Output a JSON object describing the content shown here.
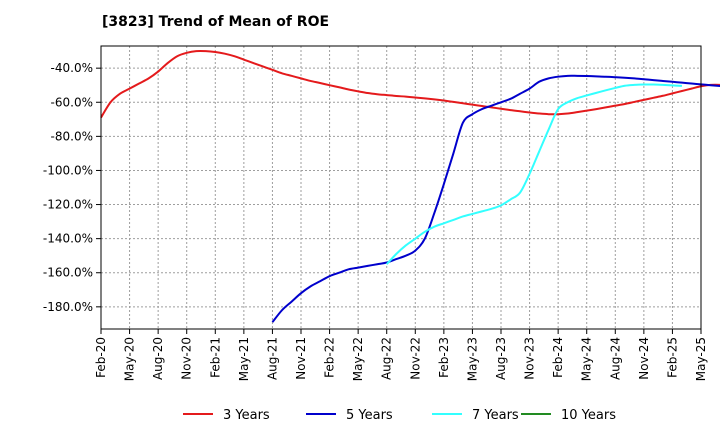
{
  "chart_data": {
    "type": "line",
    "title": "[3823]  Trend of Mean of ROE",
    "xlabel": "",
    "ylabel": "",
    "ylim": [
      -193,
      -27
    ],
    "y_ticks": [
      {
        "value": -40,
        "label": "-40.0%"
      },
      {
        "value": -60,
        "label": "-60.0%"
      },
      {
        "value": -80,
        "label": "-80.0%"
      },
      {
        "value": -100,
        "label": "-100.0%"
      },
      {
        "value": -120,
        "label": "-120.0%"
      },
      {
        "value": -140,
        "label": "-140.0%"
      },
      {
        "value": -160,
        "label": "-160.0%"
      },
      {
        "value": -180,
        "label": "-180.0%"
      }
    ],
    "x_ticks": [
      "Feb-20",
      "May-20",
      "Aug-20",
      "Nov-20",
      "Feb-21",
      "May-21",
      "Aug-21",
      "Nov-21",
      "Feb-22",
      "May-22",
      "Aug-22",
      "Nov-22",
      "Feb-23",
      "May-23",
      "Aug-23",
      "Nov-23",
      "Feb-24",
      "May-24",
      "Aug-24",
      "Nov-24",
      "Feb-25",
      "May-25"
    ],
    "grid": true,
    "legend_position": "bottom",
    "series": [
      {
        "name": "3 Years",
        "color": "#e41a1c",
        "start_index": 0,
        "values": [
          -69,
          -60,
          -55,
          -52,
          -49,
          -46,
          -42,
          -37,
          -33,
          -31,
          -30,
          -30,
          -30.5,
          -31.5,
          -33,
          -35,
          -37,
          -39,
          -41,
          -43,
          -44.5,
          -46,
          -47.5,
          -48.7,
          -50,
          -51.2,
          -52.5,
          -53.6,
          -54.6,
          -55.3,
          -55.8,
          -56.3,
          -56.7,
          -57.2,
          -57.7,
          -58.3,
          -59,
          -59.8,
          -60.6,
          -61.4,
          -62.2,
          -63,
          -63.8,
          -64.6,
          -65.3,
          -66,
          -66.6,
          -67,
          -67,
          -66.6,
          -65.8,
          -64.9,
          -64,
          -63,
          -62,
          -61,
          -59.8,
          -58.6,
          -57.4,
          -56.2,
          -54.8,
          -53.4,
          -52,
          -50.6,
          -49.8,
          -49.8,
          -50.6,
          -52,
          -53.4,
          -55,
          -56.5,
          -57.6,
          -58.3,
          -58.8,
          -59.2
        ]
      },
      {
        "name": "5 Years",
        "color": "#0000cc",
        "start_index": 18,
        "values": [
          -189,
          -182,
          -177,
          -172,
          -168,
          -165,
          -162,
          -160,
          -158,
          -157,
          -156,
          -155,
          -154,
          -152,
          -150,
          -147,
          -140,
          -125,
          -108,
          -90,
          -72,
          -67,
          -64,
          -62,
          -60,
          -58,
          -55,
          -52,
          -48,
          -46,
          -45,
          -44.5,
          -44.5,
          -44.6,
          -44.8,
          -45,
          -45.3,
          -45.6,
          -46,
          -46.5,
          -47,
          -47.5,
          -48,
          -48.5,
          -49,
          -49.5,
          -50,
          -50.5,
          -51,
          -51.6,
          -52.2,
          -53,
          -54,
          -55.5,
          -57,
          -58.5,
          -60,
          -61.3,
          -62.5,
          -63.5,
          -64.3,
          -65
        ]
      },
      {
        "name": "7 Years",
        "color": "#33ffff",
        "start_index": 30,
        "values": [
          -155,
          -149,
          -144,
          -140,
          -136,
          -133,
          -131,
          -129,
          -127,
          -125.5,
          -124,
          -122.5,
          -120.5,
          -117,
          -113,
          -102,
          -89,
          -76,
          -64,
          -60,
          -57.6,
          -56,
          -54.5,
          -53,
          -51.6,
          -50.3,
          -49.8,
          -49.6,
          -49.6,
          -49.8,
          -50.1,
          -50.4
        ]
      },
      {
        "name": "10 Years",
        "color": "#228b22",
        "start_index": 0,
        "values": []
      }
    ]
  }
}
